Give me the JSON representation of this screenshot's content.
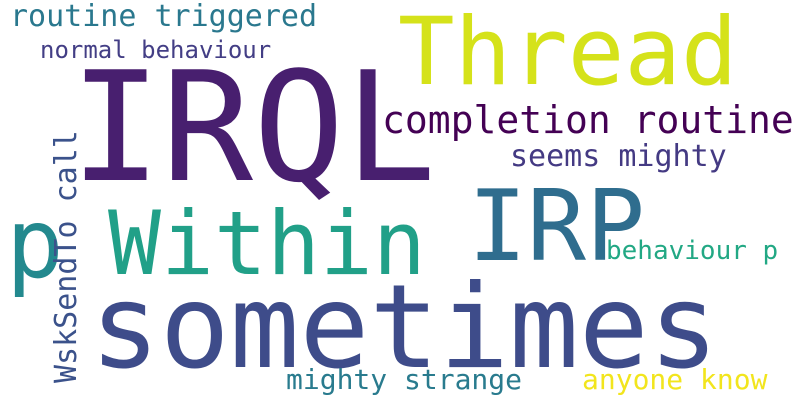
{
  "words": [
    {
      "id": "irql",
      "text": "IRQL",
      "color": "#481f6f"
    },
    {
      "id": "thread",
      "text": "Thread",
      "color": "#d5e21a"
    },
    {
      "id": "sometimes",
      "text": "sometimes",
      "color": "#3e4c8a"
    },
    {
      "id": "irp",
      "text": "IRP",
      "color": "#2f6d8e"
    },
    {
      "id": "within",
      "text": "Within",
      "color": "#21a088"
    },
    {
      "id": "p-large",
      "text": "p",
      "color": "#23898e"
    },
    {
      "id": "routine-triggered",
      "text": "routine triggered",
      "color": "#2a788e"
    },
    {
      "id": "normal-behaviour",
      "text": "normal behaviour",
      "color": "#433e85"
    },
    {
      "id": "completion-routine",
      "text": "completion routine",
      "color": "#440154"
    },
    {
      "id": "seems-mighty",
      "text": "seems mighty",
      "color": "#443a83"
    },
    {
      "id": "wsksendto-call",
      "text": "WskSendTo call",
      "color": "#3b528b"
    },
    {
      "id": "behaviour-p",
      "text": "behaviour p",
      "color": "#22a884"
    },
    {
      "id": "mighty-strange",
      "text": "mighty strange",
      "color": "#297b8e"
    },
    {
      "id": "anyone-know",
      "text": "anyone know",
      "color": "#f2e51d"
    }
  ]
}
